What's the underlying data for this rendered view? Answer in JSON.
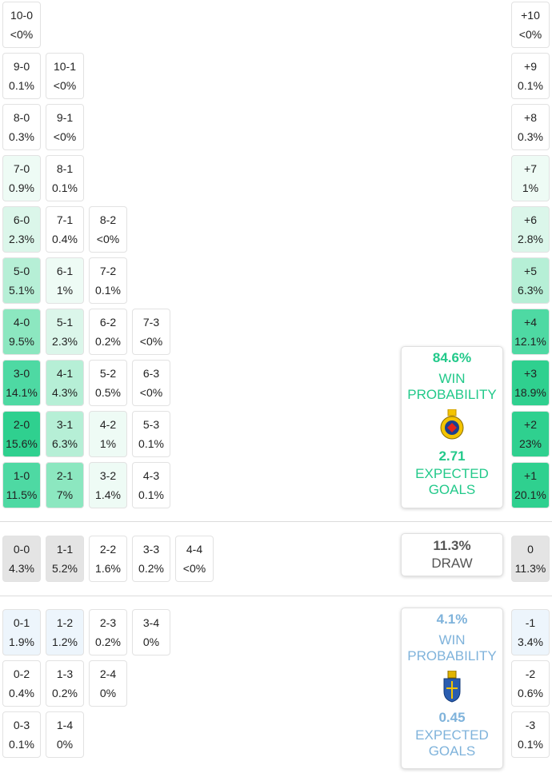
{
  "home_scores": [
    {
      "score": "10-0",
      "prob": "<0%",
      "col": 0,
      "row": 0,
      "shade": 0
    },
    {
      "score": "9-0",
      "prob": "0.1%",
      "col": 0,
      "row": 1,
      "shade": 0
    },
    {
      "score": "10-1",
      "prob": "<0%",
      "col": 1,
      "row": 1,
      "shade": 0
    },
    {
      "score": "8-0",
      "prob": "0.3%",
      "col": 0,
      "row": 2,
      "shade": 0
    },
    {
      "score": "9-1",
      "prob": "<0%",
      "col": 1,
      "row": 2,
      "shade": 0
    },
    {
      "score": "7-0",
      "prob": "0.9%",
      "col": 0,
      "row": 3,
      "shade": 1
    },
    {
      "score": "8-1",
      "prob": "0.1%",
      "col": 1,
      "row": 3,
      "shade": 0
    },
    {
      "score": "6-0",
      "prob": "2.3%",
      "col": 0,
      "row": 4,
      "shade": 2
    },
    {
      "score": "7-1",
      "prob": "0.4%",
      "col": 1,
      "row": 4,
      "shade": 0
    },
    {
      "score": "8-2",
      "prob": "<0%",
      "col": 2,
      "row": 4,
      "shade": 0
    },
    {
      "score": "5-0",
      "prob": "5.1%",
      "col": 0,
      "row": 5,
      "shade": 3
    },
    {
      "score": "6-1",
      "prob": "1%",
      "col": 1,
      "row": 5,
      "shade": 1
    },
    {
      "score": "7-2",
      "prob": "0.1%",
      "col": 2,
      "row": 5,
      "shade": 0
    },
    {
      "score": "4-0",
      "prob": "9.5%",
      "col": 0,
      "row": 6,
      "shade": 4
    },
    {
      "score": "5-1",
      "prob": "2.3%",
      "col": 1,
      "row": 6,
      "shade": 2
    },
    {
      "score": "6-2",
      "prob": "0.2%",
      "col": 2,
      "row": 6,
      "shade": 0
    },
    {
      "score": "7-3",
      "prob": "<0%",
      "col": 3,
      "row": 6,
      "shade": 0
    },
    {
      "score": "3-0",
      "prob": "14.1%",
      "col": 0,
      "row": 7,
      "shade": 5
    },
    {
      "score": "4-1",
      "prob": "4.3%",
      "col": 1,
      "row": 7,
      "shade": 3
    },
    {
      "score": "5-2",
      "prob": "0.5%",
      "col": 2,
      "row": 7,
      "shade": 0
    },
    {
      "score": "6-3",
      "prob": "<0%",
      "col": 3,
      "row": 7,
      "shade": 0
    },
    {
      "score": "2-0",
      "prob": "15.6%",
      "col": 0,
      "row": 8,
      "shade": 6
    },
    {
      "score": "3-1",
      "prob": "6.3%",
      "col": 1,
      "row": 8,
      "shade": 3
    },
    {
      "score": "4-2",
      "prob": "1%",
      "col": 2,
      "row": 8,
      "shade": 1
    },
    {
      "score": "5-3",
      "prob": "0.1%",
      "col": 3,
      "row": 8,
      "shade": 0
    },
    {
      "score": "1-0",
      "prob": "11.5%",
      "col": 0,
      "row": 9,
      "shade": 5
    },
    {
      "score": "2-1",
      "prob": "7%",
      "col": 1,
      "row": 9,
      "shade": 4
    },
    {
      "score": "3-2",
      "prob": "1.4%",
      "col": 2,
      "row": 9,
      "shade": 1
    },
    {
      "score": "4-3",
      "prob": "0.1%",
      "col": 3,
      "row": 9,
      "shade": 0
    }
  ],
  "draw_scores": [
    {
      "score": "0-0",
      "prob": "4.3%",
      "col": 0,
      "shade": 2
    },
    {
      "score": "1-1",
      "prob": "5.2%",
      "col": 1,
      "shade": 2
    },
    {
      "score": "2-2",
      "prob": "1.6%",
      "col": 2,
      "shade": 0
    },
    {
      "score": "3-3",
      "prob": "0.2%",
      "col": 3,
      "shade": 0
    },
    {
      "score": "4-4",
      "prob": "<0%",
      "col": 4,
      "shade": 0
    }
  ],
  "away_scores": [
    {
      "score": "0-1",
      "prob": "1.9%",
      "col": 0,
      "row": 0,
      "shade": 1
    },
    {
      "score": "1-2",
      "prob": "1.2%",
      "col": 1,
      "row": 0,
      "shade": 1
    },
    {
      "score": "2-3",
      "prob": "0.2%",
      "col": 2,
      "row": 0,
      "shade": 0
    },
    {
      "score": "3-4",
      "prob": "0%",
      "col": 3,
      "row": 0,
      "shade": 0
    },
    {
      "score": "0-2",
      "prob": "0.4%",
      "col": 0,
      "row": 1,
      "shade": 0
    },
    {
      "score": "1-3",
      "prob": "0.2%",
      "col": 1,
      "row": 1,
      "shade": 0
    },
    {
      "score": "2-4",
      "prob": "0%",
      "col": 2,
      "row": 1,
      "shade": 0
    },
    {
      "score": "0-3",
      "prob": "0.1%",
      "col": 0,
      "row": 2,
      "shade": 0
    },
    {
      "score": "1-4",
      "prob": "0%",
      "col": 1,
      "row": 2,
      "shade": 0
    }
  ],
  "margins_home": [
    {
      "margin": "+10",
      "prob": "<0%",
      "row": 0,
      "shade": 0
    },
    {
      "margin": "+9",
      "prob": "0.1%",
      "row": 1,
      "shade": 0
    },
    {
      "margin": "+8",
      "prob": "0.3%",
      "row": 2,
      "shade": 0
    },
    {
      "margin": "+7",
      "prob": "1%",
      "row": 3,
      "shade": 1
    },
    {
      "margin": "+6",
      "prob": "2.8%",
      "row": 4,
      "shade": 2
    },
    {
      "margin": "+5",
      "prob": "6.3%",
      "row": 5,
      "shade": 3
    },
    {
      "margin": "+4",
      "prob": "12.1%",
      "row": 6,
      "shade": 5
    },
    {
      "margin": "+3",
      "prob": "18.9%",
      "row": 7,
      "shade": 6
    },
    {
      "margin": "+2",
      "prob": "23%",
      "row": 8,
      "shade": 6
    },
    {
      "margin": "+1",
      "prob": "20.1%",
      "row": 9,
      "shade": 6
    }
  ],
  "margin_draw": {
    "margin": "0",
    "prob": "11.3%"
  },
  "margins_away": [
    {
      "margin": "-1",
      "prob": "3.4%",
      "row": 0,
      "shade": 1
    },
    {
      "margin": "-2",
      "prob": "0.6%",
      "row": 1,
      "shade": 0
    },
    {
      "margin": "-3",
      "prob": "0.1%",
      "row": 2,
      "shade": 0
    }
  ],
  "home_card": {
    "win_pct": "84.6%",
    "win_label_1": "WIN",
    "win_label_2": "PROBABILITY",
    "xg": "2.71",
    "xg_label_1": "EXPECTED",
    "xg_label_2": "GOALS",
    "crest": "villarreal-crest-icon"
  },
  "draw_card": {
    "pct": "11.3%",
    "label": "DRAW"
  },
  "away_card": {
    "win_pct": "4.1%",
    "win_label_1": "WIN",
    "win_label_2": "PROBABILITY",
    "xg": "0.45",
    "xg_label_1": "EXPECTED",
    "xg_label_2": "GOALS",
    "crest": "oviedo-crest-icon"
  },
  "colors": {
    "home_shades": [
      "#ffffff",
      "#eefbf5",
      "#dbf6ea",
      "#b6efd6",
      "#8ce7c0",
      "#4ed9a3",
      "#2fd08f"
    ],
    "draw_shades": [
      "#ffffff",
      "#f2f2f2",
      "#e4e4e4"
    ],
    "away_shades": [
      "#ffffff",
      "#edf5fc"
    ],
    "home_accent": "#22c98a",
    "away_accent": "#7fb3db",
    "draw_accent": "#555555"
  }
}
